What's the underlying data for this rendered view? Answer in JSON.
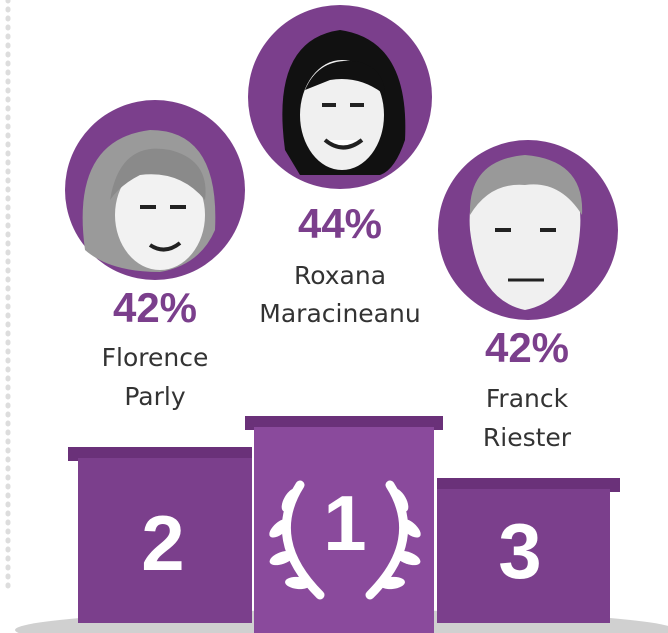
{
  "podium": [
    {
      "rank": "2",
      "percent": "42%",
      "name": [
        "Florence",
        "Parly"
      ]
    },
    {
      "rank": "1",
      "percent": "44%",
      "name": [
        "Roxana",
        "Maracineanu"
      ]
    },
    {
      "rank": "3",
      "percent": "42%",
      "name": [
        "Franck",
        "Riester"
      ]
    }
  ]
}
